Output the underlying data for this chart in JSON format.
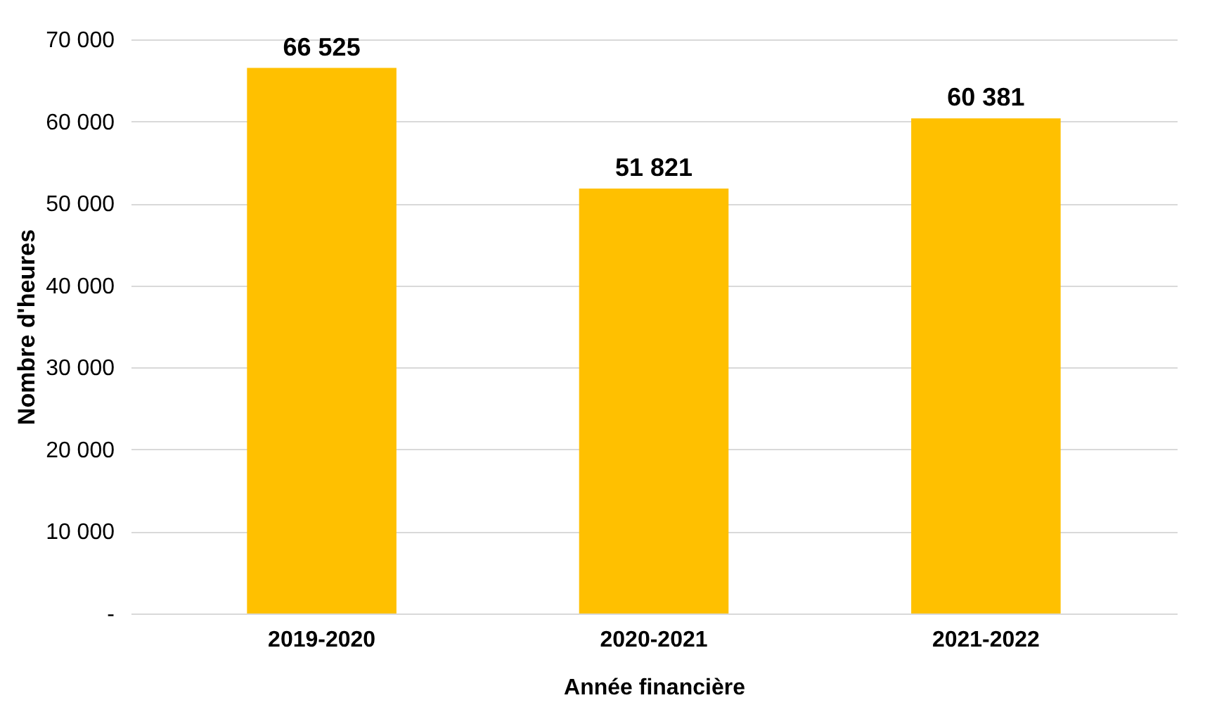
{
  "chart_data": {
    "type": "bar",
    "xlabel": "Année financière",
    "ylabel": "Nombre d'heures",
    "categories": [
      "2019-2020",
      "2020-2021",
      "2021-2022"
    ],
    "values": [
      66525,
      51821,
      60381
    ],
    "color": "#ffc000",
    "value_labels": [
      "66 525",
      "51 821",
      "60 381"
    ],
    "ylim": [
      0,
      70000
    ],
    "yticks": [
      {
        "value": 0,
        "label": "-"
      },
      {
        "value": 10000,
        "label": "10 000"
      },
      {
        "value": 20000,
        "label": "20 000"
      },
      {
        "value": 30000,
        "label": "30 000"
      },
      {
        "value": 40000,
        "label": "40 000"
      },
      {
        "value": 50000,
        "label": "50 000"
      },
      {
        "value": 60000,
        "label": "60 000"
      },
      {
        "value": 70000,
        "label": "70 000"
      }
    ],
    "grid": true
  }
}
